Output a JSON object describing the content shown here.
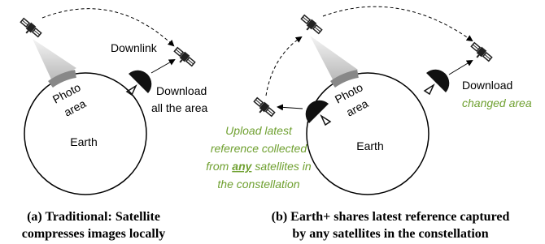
{
  "panel_a": {
    "downlink_label": "Downlink",
    "photo_area": [
      "Photo",
      "area"
    ],
    "download_label": [
      "Download",
      "all the area"
    ],
    "earth_label": "Earth",
    "caption": [
      "(a) Traditional: Satellite",
      "compresses images locally"
    ]
  },
  "panel_b": {
    "photo_area": [
      "Photo",
      "area"
    ],
    "download_label": "Download",
    "changed_label": "changed area",
    "earth_label": "Earth",
    "upload_label": {
      "line1": "Upload latest",
      "line2": "reference collected",
      "line3_start": "from",
      "line3_emphasis": "any",
      "line3_end": "satellites in",
      "line4": "the constellation"
    },
    "caption": [
      "(b) Earth+ shares latest reference captured",
      "by any satellites in the constellation"
    ]
  }
}
